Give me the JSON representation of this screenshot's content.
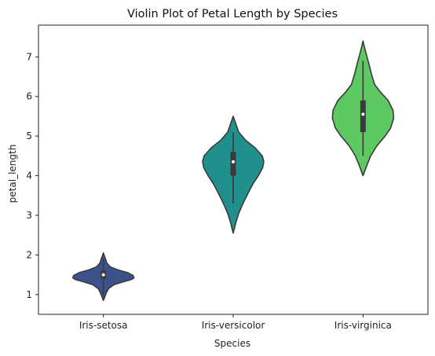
{
  "chart_data": {
    "type": "violin",
    "title": "Violin Plot of Petal Length by Species",
    "xlabel": "Species",
    "ylabel": "petal_length",
    "ylim": [
      0.5,
      7.8
    ],
    "yticks": [
      "1",
      "2",
      "3",
      "4",
      "5",
      "6",
      "7"
    ],
    "categories": [
      "Iris-setosa",
      "Iris-versicolor",
      "Iris-virginica"
    ],
    "grid": false,
    "series": [
      {
        "category": "Iris-setosa",
        "color": "#3b528b",
        "min": 1.0,
        "q1": 1.4,
        "median": 1.5,
        "q3": 1.6,
        "max": 1.9,
        "profile": [
          [
            0.85,
            0.0
          ],
          [
            0.95,
            0.05
          ],
          [
            1.05,
            0.1
          ],
          [
            1.15,
            0.17
          ],
          [
            1.25,
            0.35
          ],
          [
            1.32,
            0.65
          ],
          [
            1.38,
            0.92
          ],
          [
            1.42,
            1.0
          ],
          [
            1.48,
            0.97
          ],
          [
            1.55,
            0.8
          ],
          [
            1.62,
            0.48
          ],
          [
            1.7,
            0.22
          ],
          [
            1.8,
            0.11
          ],
          [
            1.9,
            0.07
          ],
          [
            1.98,
            0.03
          ],
          [
            2.05,
            0.0
          ]
        ]
      },
      {
        "category": "Iris-versicolor",
        "color": "#21908d",
        "min": 3.3,
        "q1": 4.0,
        "median": 4.35,
        "q3": 4.6,
        "max": 5.1,
        "profile": [
          [
            2.55,
            0.0
          ],
          [
            2.8,
            0.08
          ],
          [
            3.05,
            0.18
          ],
          [
            3.3,
            0.32
          ],
          [
            3.55,
            0.48
          ],
          [
            3.8,
            0.65
          ],
          [
            4.0,
            0.82
          ],
          [
            4.2,
            0.96
          ],
          [
            4.35,
            1.0
          ],
          [
            4.5,
            0.95
          ],
          [
            4.7,
            0.72
          ],
          [
            4.9,
            0.4
          ],
          [
            5.1,
            0.18
          ],
          [
            5.3,
            0.09
          ],
          [
            5.5,
            0.0
          ]
        ]
      },
      {
        "category": "Iris-virginica",
        "color": "#5ec962",
        "min": 4.5,
        "q1": 5.1,
        "median": 5.55,
        "q3": 5.9,
        "max": 6.9,
        "profile": [
          [
            4.0,
            0.0
          ],
          [
            4.25,
            0.12
          ],
          [
            4.5,
            0.25
          ],
          [
            4.75,
            0.45
          ],
          [
            5.0,
            0.72
          ],
          [
            5.2,
            0.9
          ],
          [
            5.45,
            1.0
          ],
          [
            5.65,
            0.98
          ],
          [
            5.9,
            0.82
          ],
          [
            6.1,
            0.58
          ],
          [
            6.3,
            0.38
          ],
          [
            6.55,
            0.28
          ],
          [
            6.8,
            0.2
          ],
          [
            7.0,
            0.13
          ],
          [
            7.2,
            0.06
          ],
          [
            7.4,
            0.0
          ]
        ]
      }
    ]
  }
}
